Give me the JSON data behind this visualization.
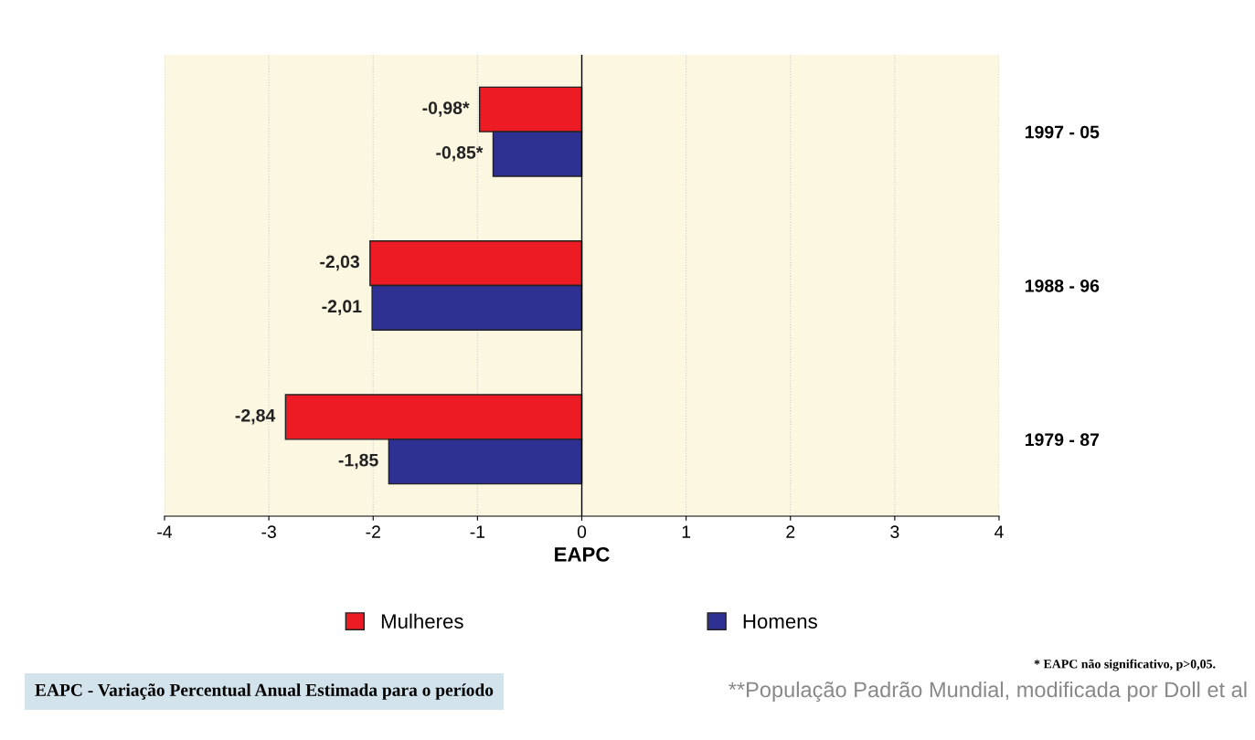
{
  "chart_data": {
    "type": "bar",
    "orientation": "horizontal",
    "categories": [
      "1997 - 05",
      "1988 - 96",
      "1979 - 87"
    ],
    "series": [
      {
        "name": "Mulheres",
        "color": "#ed1c24",
        "values": [
          -0.98,
          -2.03,
          -2.84
        ],
        "value_labels": [
          "-0,98*",
          "-2,03",
          "-2,84"
        ]
      },
      {
        "name": "Homens",
        "color": "#2e3192",
        "values": [
          -0.85,
          -2.01,
          -1.85
        ],
        "value_labels": [
          "-0,85*",
          "-2,01",
          "-1,85"
        ]
      }
    ],
    "xlabel": "EAPC",
    "xlim": [
      -4,
      4
    ],
    "xticks": [
      -4,
      -3,
      -2,
      -1,
      0,
      1,
      2,
      3,
      4
    ],
    "grid": "x",
    "legend": "bottom",
    "ref_lines": [
      {
        "axis": "x",
        "value": 0,
        "color": "#000000"
      }
    ],
    "annotations": [
      "* EAPC não significativo, p>0,05.",
      "EAPC - Variação Percentual Anual Estimada para o período",
      "**População Padrão Mundial, modificada por Doll et al"
    ]
  }
}
